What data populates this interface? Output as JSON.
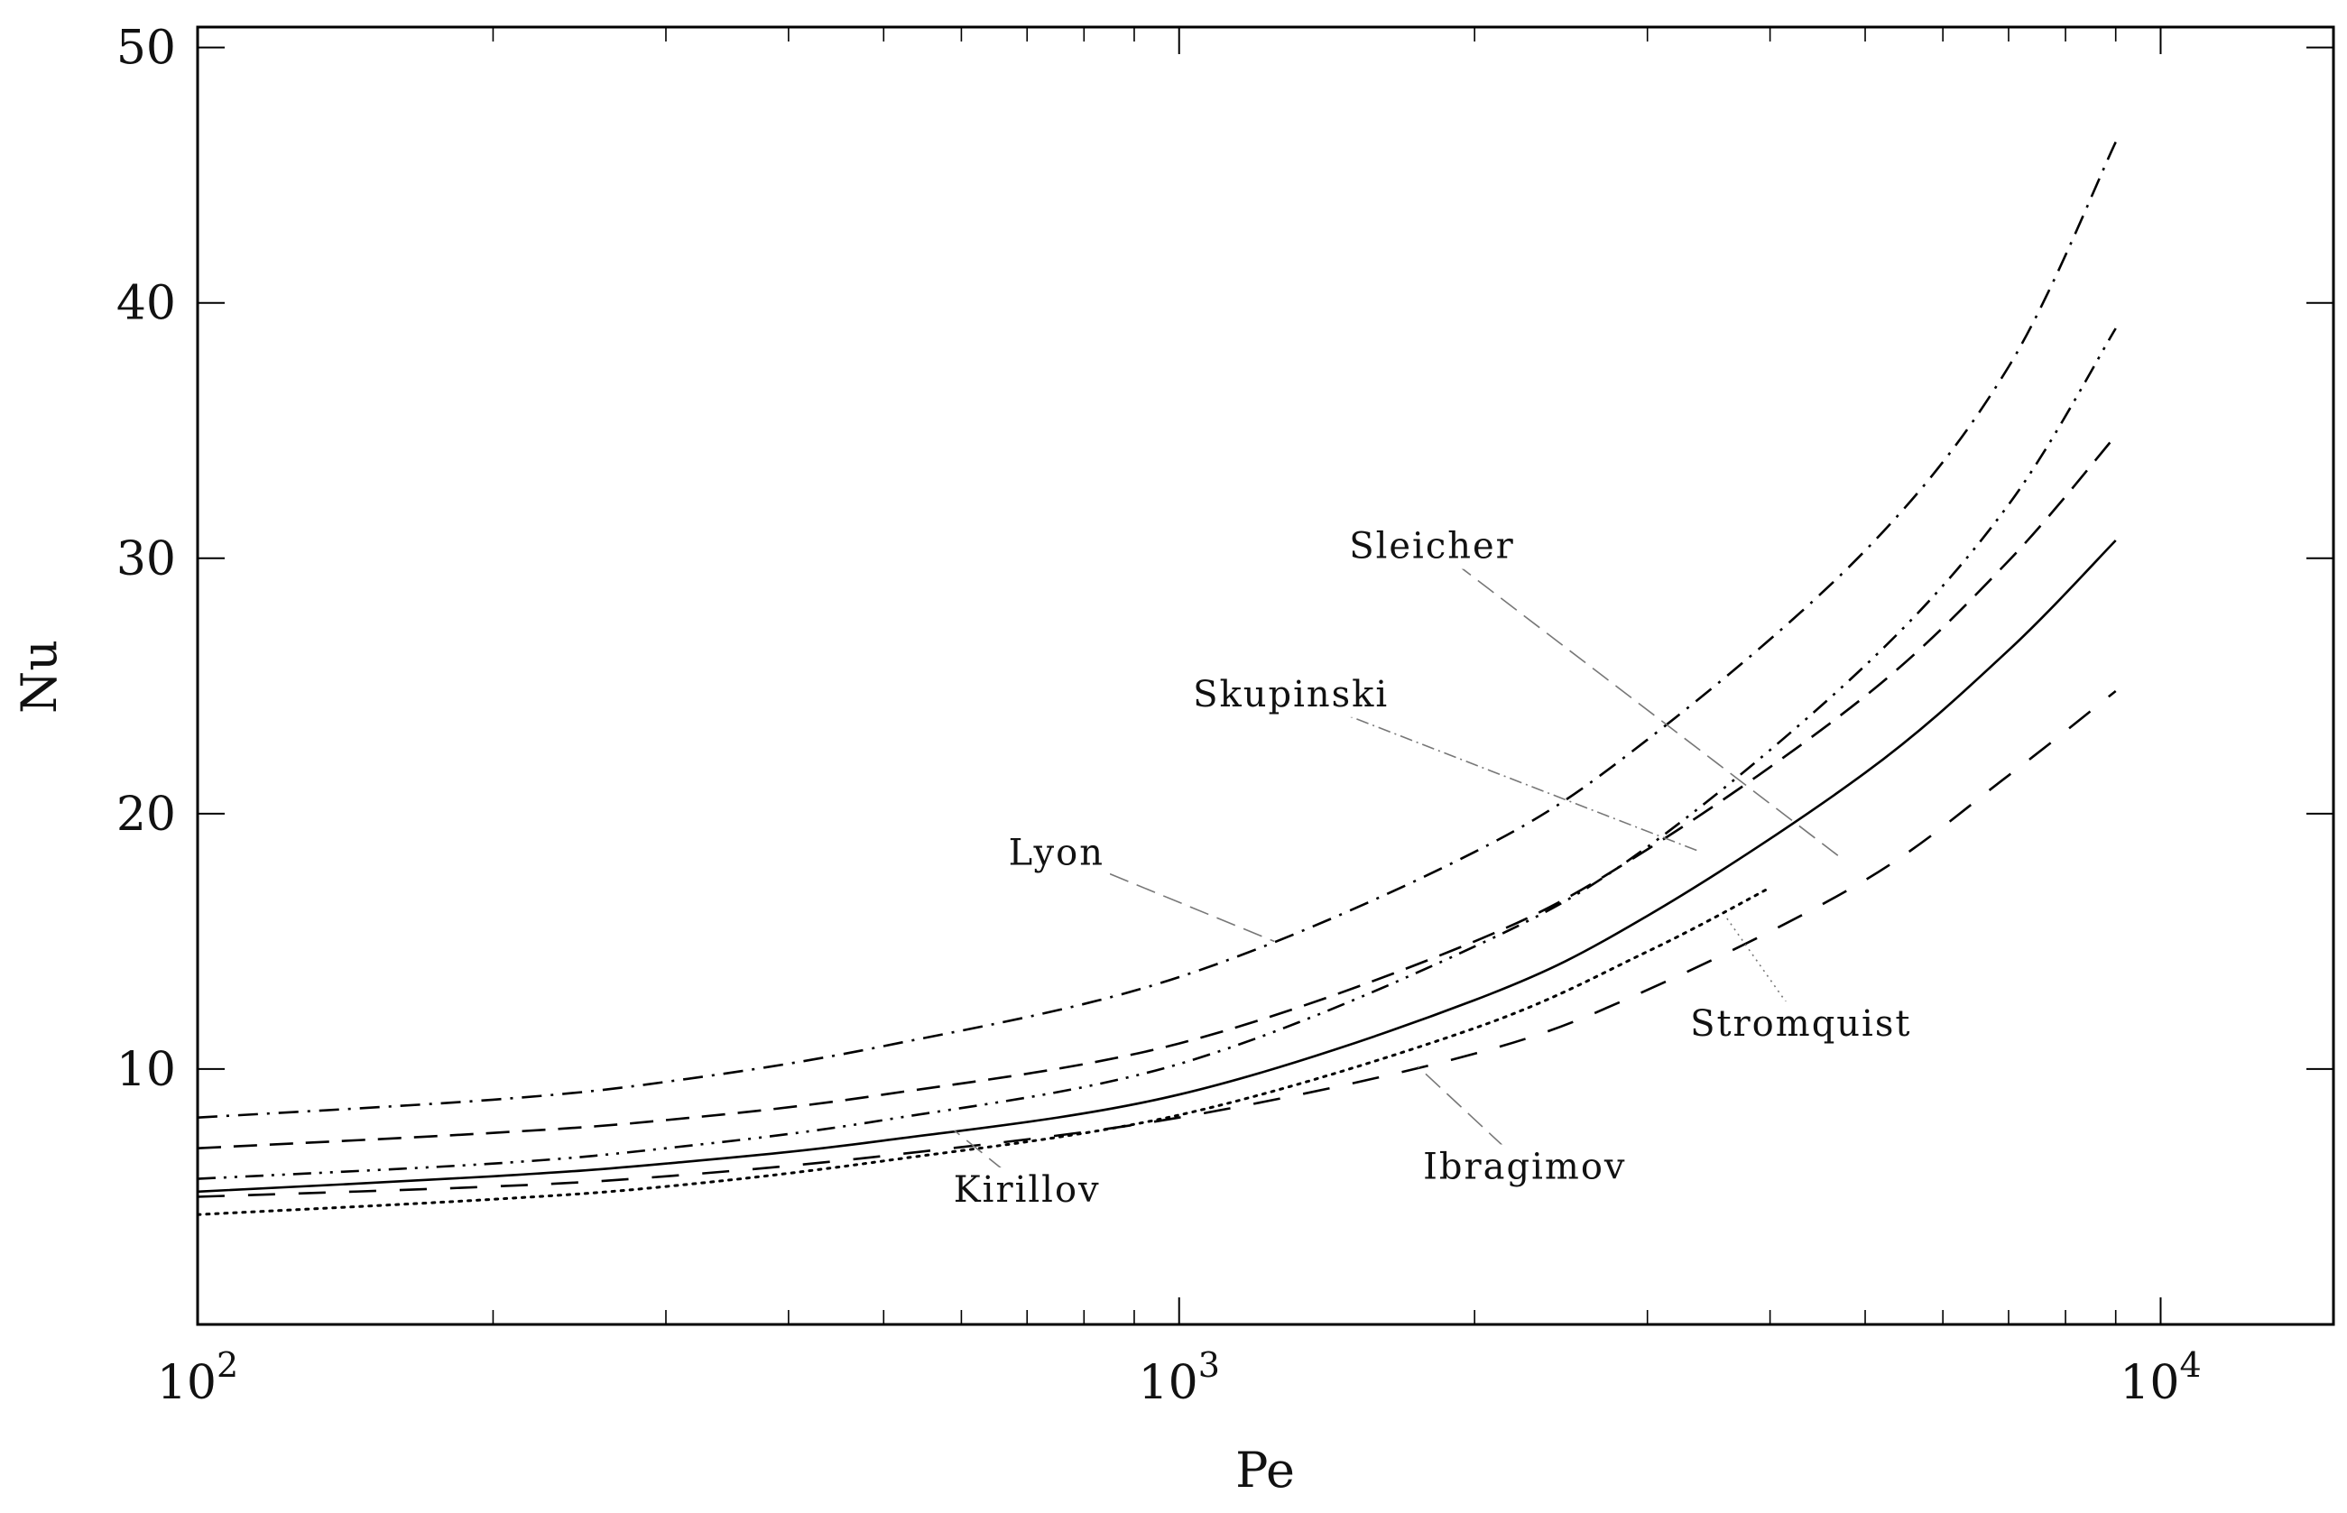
{
  "chart_data": {
    "type": "line",
    "xscale": "log",
    "xlim": [
      100,
      15000
    ],
    "ylim": [
      0,
      50.8
    ],
    "xlabel": "Pe",
    "ylabel": "Nu",
    "grid": false,
    "legend": "none (inline annotations)",
    "xticks": [
      {
        "value": 100,
        "base": "10",
        "exp": "2"
      },
      {
        "value": 1000,
        "base": "10",
        "exp": "3"
      },
      {
        "value": 10000,
        "base": "10",
        "exp": "4"
      }
    ],
    "yticks": [
      {
        "value": 10,
        "label": "10"
      },
      {
        "value": 20,
        "label": "20"
      },
      {
        "value": 30,
        "label": "30"
      },
      {
        "value": 40,
        "label": "40"
      },
      {
        "value": 50,
        "label": "50"
      }
    ],
    "series": [
      {
        "name": "Lyon",
        "style": "dashdot",
        "points": [
          [
            100,
            8.1
          ],
          [
            200,
            8.8
          ],
          [
            300,
            9.5
          ],
          [
            500,
            10.9
          ],
          [
            1000,
            13.6
          ],
          [
            2000,
            18.5
          ],
          [
            3000,
            22.9
          ],
          [
            5000,
            30.3
          ],
          [
            7000,
            37.5
          ],
          [
            9000,
            46.3
          ]
        ]
      },
      {
        "name": "Skupinski",
        "style": "dashdotdot",
        "points": [
          [
            100,
            5.7
          ],
          [
            200,
            6.3
          ],
          [
            300,
            6.9
          ],
          [
            500,
            8.0
          ],
          [
            1000,
            10.2
          ],
          [
            2000,
            14.8
          ],
          [
            3000,
            18.7
          ],
          [
            5000,
            25.8
          ],
          [
            7000,
            32.1
          ],
          [
            9000,
            39.0
          ]
        ]
      },
      {
        "name": "Sleicher",
        "style": "dashed",
        "points": [
          [
            100,
            6.9
          ],
          [
            200,
            7.5
          ],
          [
            300,
            8.0
          ],
          [
            500,
            9.0
          ],
          [
            1000,
            11.0
          ],
          [
            2000,
            15.0
          ],
          [
            3000,
            18.6
          ],
          [
            5000,
            24.6
          ],
          [
            7000,
            29.9
          ],
          [
            9000,
            34.8
          ]
        ]
      },
      {
        "name": "Kirillov",
        "style": "solid",
        "points": [
          [
            100,
            5.2
          ],
          [
            200,
            5.8
          ],
          [
            300,
            6.3
          ],
          [
            500,
            7.2
          ],
          [
            1000,
            9.0
          ],
          [
            2000,
            12.7
          ],
          [
            3000,
            16.0
          ],
          [
            5000,
            21.6
          ],
          [
            7000,
            26.4
          ],
          [
            9000,
            30.7
          ]
        ]
      },
      {
        "name": "Ibragimov",
        "style": "loose-dashed",
        "points": [
          [
            100,
            5.0
          ],
          [
            200,
            5.4
          ],
          [
            300,
            5.8
          ],
          [
            500,
            6.6
          ],
          [
            1000,
            8.1
          ],
          [
            2000,
            10.6
          ],
          [
            3000,
            13.1
          ],
          [
            5000,
            17.4
          ],
          [
            7000,
            21.5
          ],
          [
            9000,
            24.8
          ]
        ]
      },
      {
        "name": "Stromquist",
        "style": "dotted",
        "points": [
          [
            100,
            4.3
          ],
          [
            200,
            4.9
          ],
          [
            300,
            5.4
          ],
          [
            500,
            6.4
          ],
          [
            1000,
            8.2
          ],
          [
            2000,
            11.6
          ],
          [
            3000,
            14.6
          ],
          [
            4000,
            17.1
          ]
        ]
      }
    ],
    "annotations": [
      {
        "text": "Sleicher",
        "label_at": [
          1810,
          30.5
        ],
        "pointer_to": [
          4750,
          18.2
        ]
      },
      {
        "text": "Skupinski",
        "label_at": [
          1300,
          24.7
        ],
        "pointer_to": [
          3400,
          18.5
        ]
      },
      {
        "text": "Lyon",
        "label_at": [
          750,
          18.5
        ],
        "pointer_to": [
          1250,
          15.0
        ]
      },
      {
        "text": "Stromquist",
        "label_at": [
          4300,
          11.8
        ],
        "pointer_to": [
          3600,
          16.0
        ]
      },
      {
        "text": "Ibragimov",
        "label_at": [
          2250,
          6.2
        ],
        "pointer_to": [
          1750,
          10.1
        ]
      },
      {
        "text": "Kirillov",
        "label_at": [
          700,
          5.3
        ],
        "pointer_to": [
          590,
          7.6
        ]
      }
    ]
  }
}
